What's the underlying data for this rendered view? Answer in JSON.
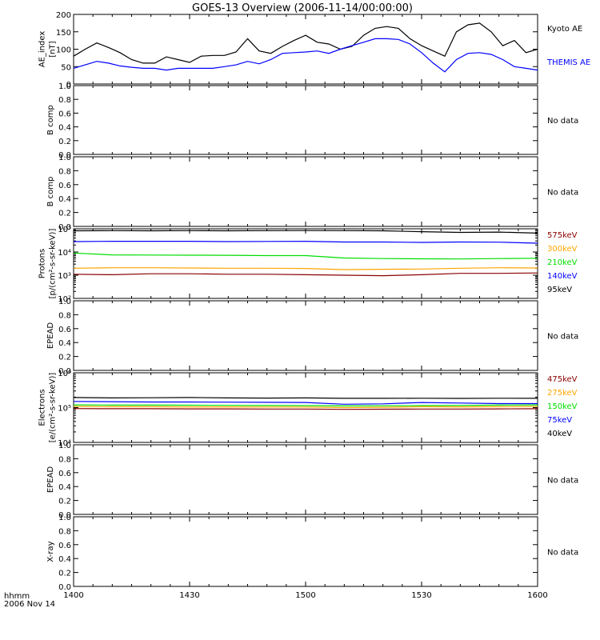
{
  "title": "GOES-13 Overview (2006-11-14/00:00:00)",
  "x_axis": {
    "tick_labels": [
      "1400",
      "1430",
      "1500",
      "1530",
      "1600"
    ],
    "corner_label_1": "hhmm",
    "corner_label_2": "2006 Nov 14"
  },
  "no_data_text": "No data",
  "chart_data": [
    {
      "id": "ae",
      "type": "line",
      "ylabel": [
        "AE_index",
        "[nT]"
      ],
      "ylim": [
        0,
        200
      ],
      "yticks": [
        "0",
        "50",
        "100",
        "150",
        "200"
      ],
      "x_unit": "minutes after 14:00",
      "series": [
        {
          "name": "Kyoto AE",
          "color": "#000000",
          "x": [
            0,
            3,
            6,
            9,
            12,
            15,
            18,
            21,
            24,
            27,
            30,
            33,
            36,
            39,
            42,
            45,
            48,
            51,
            54,
            57,
            60,
            63,
            66,
            69,
            72,
            75,
            78,
            81,
            84,
            87,
            90,
            93,
            96,
            99,
            102,
            105,
            108,
            111,
            114,
            117,
            120
          ],
          "values": [
            80,
            100,
            118,
            105,
            90,
            70,
            60,
            60,
            78,
            70,
            62,
            80,
            82,
            82,
            92,
            130,
            95,
            88,
            108,
            125,
            140,
            120,
            115,
            100,
            108,
            140,
            160,
            165,
            160,
            130,
            110,
            95,
            80,
            150,
            170,
            175,
            150,
            110,
            125,
            90,
            100
          ]
        },
        {
          "name": "THEMIS AE",
          "color": "#0000ff",
          "x": [
            0,
            3,
            6,
            9,
            12,
            15,
            18,
            21,
            24,
            27,
            30,
            33,
            36,
            39,
            42,
            45,
            48,
            51,
            54,
            57,
            60,
            63,
            66,
            69,
            72,
            75,
            78,
            81,
            84,
            87,
            90,
            93,
            96,
            99,
            102,
            105,
            108,
            111,
            114,
            117,
            120
          ],
          "values": [
            45,
            55,
            65,
            60,
            52,
            48,
            45,
            45,
            40,
            45,
            45,
            45,
            45,
            50,
            55,
            65,
            58,
            70,
            88,
            90,
            92,
            95,
            88,
            100,
            110,
            120,
            130,
            130,
            128,
            115,
            90,
            60,
            35,
            70,
            88,
            90,
            85,
            70,
            50,
            45,
            40
          ]
        }
      ]
    },
    {
      "id": "bcomp1",
      "type": "line",
      "ylabel": [
        "B comp"
      ],
      "ylim": [
        0,
        1
      ],
      "yticks": [
        "0.0",
        "0.2",
        "0.4",
        "0.6",
        "0.8",
        "1.0"
      ],
      "no_data": true
    },
    {
      "id": "bcomp2",
      "type": "line",
      "ylabel": [
        "B comp"
      ],
      "ylim": [
        0,
        1
      ],
      "yticks": [
        "0.0",
        "0.2",
        "0.4",
        "0.6",
        "0.8",
        "1.0"
      ],
      "no_data": true
    },
    {
      "id": "protons",
      "type": "line",
      "log_y": true,
      "ylabel": [
        "Protons",
        "[p/(cm²-s-sr-keV)]"
      ],
      "ylim": [
        100,
        100000
      ],
      "yticks": [
        "10²",
        "10³",
        "10⁴",
        "10⁵"
      ],
      "x_unit": "minutes after 14:00",
      "series": [
        {
          "name": "575keV",
          "color": "#000000",
          "x": [
            0,
            10,
            20,
            30,
            40,
            50,
            60,
            70,
            80,
            90,
            100,
            110,
            120
          ],
          "values": [
            82000,
            83000,
            82000,
            83000,
            82000,
            83000,
            84000,
            83000,
            82000,
            75000,
            70000,
            72000,
            65000
          ]
        },
        {
          "name": "300keV",
          "color": "#0000ff",
          "x": [
            0,
            10,
            20,
            30,
            40,
            50,
            60,
            70,
            80,
            90,
            100,
            110,
            120
          ],
          "values": [
            28000,
            29000,
            29000,
            29000,
            28000,
            28500,
            29000,
            27000,
            27000,
            26000,
            27000,
            26500,
            24000
          ]
        },
        {
          "name": "210keV",
          "color": "#00dd00",
          "x": [
            0,
            10,
            20,
            30,
            40,
            50,
            60,
            70,
            80,
            90,
            100,
            110,
            120
          ],
          "values": [
            9000,
            7500,
            7400,
            7300,
            7200,
            7000,
            7000,
            5500,
            5200,
            5100,
            5000,
            5200,
            5400
          ]
        },
        {
          "name": "140keV",
          "color": "#ffa500",
          "x": [
            0,
            10,
            20,
            30,
            40,
            50,
            60,
            70,
            80,
            90,
            100,
            110,
            120
          ],
          "values": [
            2000,
            2100,
            2100,
            2050,
            2000,
            2000,
            1950,
            1750,
            1800,
            1850,
            2000,
            2100,
            2050
          ]
        },
        {
          "name": "95keV",
          "color": "#8b0000",
          "x": [
            0,
            10,
            20,
            30,
            40,
            50,
            60,
            70,
            80,
            90,
            100,
            110,
            120
          ],
          "values": [
            1100,
            1050,
            1150,
            1150,
            1100,
            1100,
            1050,
            1000,
            950,
            1050,
            1200,
            1200,
            1250
          ]
        }
      ]
    },
    {
      "id": "epead1",
      "type": "line",
      "ylabel": [
        "EPEAD"
      ],
      "ylim": [
        0,
        1
      ],
      "yticks": [
        "0.0",
        "0.2",
        "0.4",
        "0.6",
        "0.8",
        "1.0"
      ],
      "no_data": true
    },
    {
      "id": "electrons",
      "type": "line",
      "log_y": true,
      "ylabel": [
        "Electrons",
        "[e/(cm²-s-sr-keV)]"
      ],
      "ylim": [
        10000,
        1000000
      ],
      "yticks": [
        "10⁴",
        "10⁵",
        "10⁶"
      ],
      "x_unit": "minutes after 14:00",
      "series": [
        {
          "name": "475keV",
          "color": "#000000",
          "x": [
            0,
            10,
            20,
            30,
            40,
            50,
            60,
            70,
            80,
            90,
            100,
            110,
            120
          ],
          "values": [
            195000,
            190000,
            192000,
            195000,
            190000,
            188000,
            190000,
            185000,
            185000,
            186000,
            184000,
            186000,
            185000
          ]
        },
        {
          "name": "275keV",
          "color": "#0000ff",
          "x": [
            0,
            10,
            20,
            30,
            40,
            50,
            60,
            70,
            80,
            90,
            100,
            110,
            120
          ],
          "values": [
            150000,
            148000,
            145000,
            145000,
            143000,
            142000,
            140000,
            125000,
            128000,
            140000,
            135000,
            130000,
            130000
          ]
        },
        {
          "name": "150keV",
          "color": "#00dd00",
          "x": [
            0,
            10,
            20,
            30,
            40,
            50,
            60,
            70,
            80,
            90,
            100,
            110,
            120
          ],
          "values": [
            120000,
            118000,
            118000,
            117000,
            116000,
            115000,
            114000,
            112000,
            113000,
            114000,
            115000,
            118000,
            120000
          ]
        },
        {
          "name": "75keV",
          "color": "#ffa500",
          "x": [
            0,
            10,
            20,
            30,
            40,
            50,
            60,
            70,
            80,
            90,
            100,
            110,
            120
          ],
          "values": [
            108000,
            106000,
            106000,
            105000,
            105000,
            104000,
            104000,
            100000,
            102000,
            106000,
            105000,
            106000,
            108000
          ]
        },
        {
          "name": "40keV",
          "color": "#8b0000",
          "x": [
            0,
            10,
            20,
            30,
            40,
            50,
            60,
            70,
            80,
            90,
            100,
            110,
            120
          ],
          "values": [
            94000,
            93000,
            93000,
            92000,
            92000,
            91000,
            91000,
            89000,
            90000,
            91000,
            91000,
            92000,
            93000
          ]
        }
      ]
    },
    {
      "id": "epead2",
      "type": "line",
      "ylabel": [
        "EPEAD"
      ],
      "ylim": [
        0,
        1
      ],
      "yticks": [
        "0.0",
        "0.2",
        "0.4",
        "0.6",
        "0.8",
        "1.0"
      ],
      "no_data": true
    },
    {
      "id": "xray",
      "type": "line",
      "ylabel": [
        "X-ray"
      ],
      "ylim": [
        0,
        1
      ],
      "yticks": [
        "0.0",
        "0.2",
        "0.4",
        "0.6",
        "0.8",
        "1.0"
      ],
      "no_data": true
    }
  ]
}
